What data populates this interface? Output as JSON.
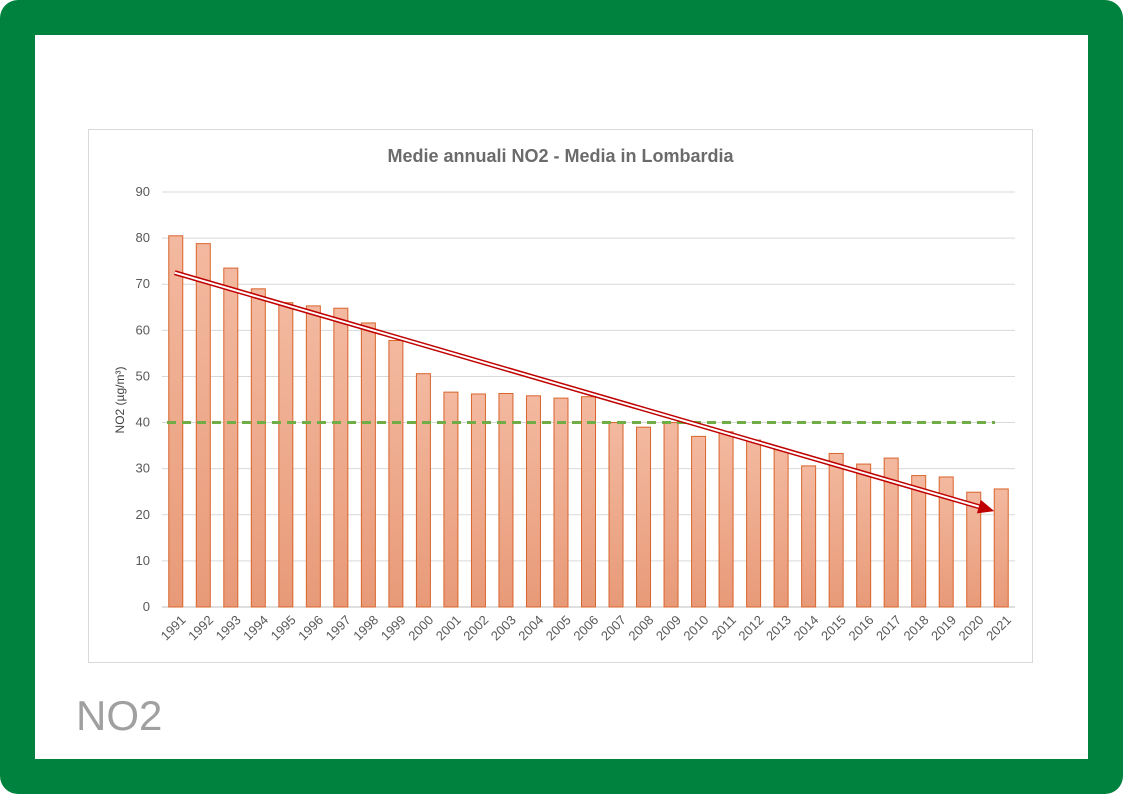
{
  "caption": "NO2",
  "chart_data": {
    "type": "bar",
    "title": "Medie annuali NO2 - Media in Lombardia",
    "xlabel": "",
    "ylabel": "NO2 (µg/m³)",
    "ylim": [
      0,
      90
    ],
    "yticks": [
      0,
      10,
      20,
      30,
      40,
      50,
      60,
      70,
      80,
      90
    ],
    "grid": true,
    "categories": [
      "1991",
      "1992",
      "1993",
      "1994",
      "1995",
      "1996",
      "1997",
      "1998",
      "1999",
      "2000",
      "2001",
      "2002",
      "2003",
      "2004",
      "2005",
      "2006",
      "2007",
      "2008",
      "2009",
      "2010",
      "2011",
      "2012",
      "2013",
      "2014",
      "2015",
      "2016",
      "2017",
      "2018",
      "2019",
      "2020",
      "2021"
    ],
    "values": [
      80.5,
      78.8,
      73.5,
      69.0,
      66.0,
      65.3,
      64.8,
      61.6,
      57.8,
      50.6,
      46.6,
      46.2,
      46.3,
      45.8,
      45.3,
      45.6,
      40.0,
      39.0,
      40.0,
      37.0,
      38.0,
      36.2,
      34.1,
      30.6,
      33.3,
      31.0,
      32.3,
      28.5,
      28.2,
      24.9,
      25.6
    ],
    "limit_line": {
      "value": 40,
      "style": "dashed",
      "color": "#70ad47"
    },
    "trend_arrow": {
      "from": {
        "x": "1991",
        "y": 72.5
      },
      "to": {
        "x": "2021",
        "y": 20.8
      },
      "color": "#c00000"
    },
    "colors": {
      "bar_fill_top": "#f3b9a0",
      "bar_fill_bottom": "#e89a78",
      "bar_stroke": "#d9642c",
      "grid": "#d9d9d9"
    }
  }
}
